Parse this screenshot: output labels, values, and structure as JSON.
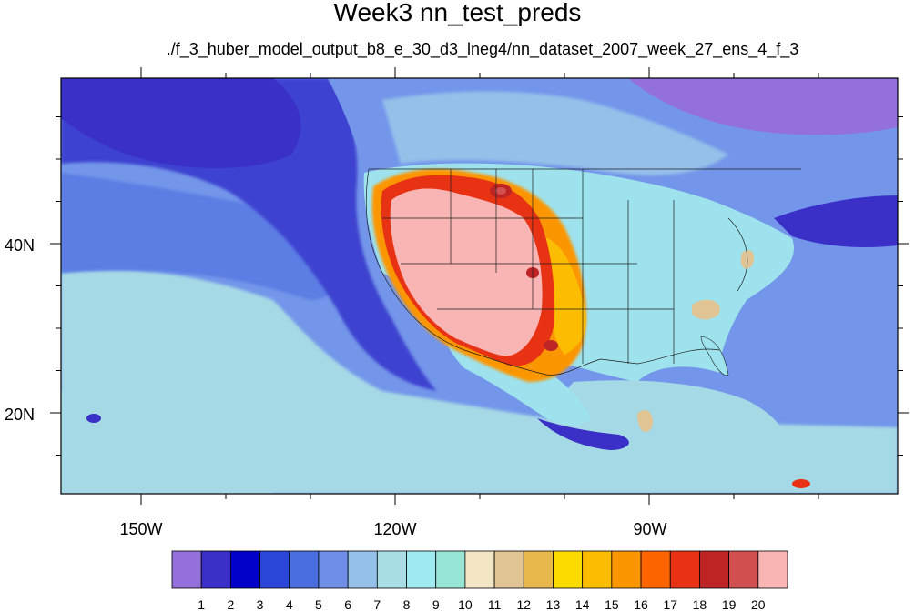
{
  "title": "Week3 nn_test_preds",
  "subtitle": "./f_3_huber_model_output_b8_e_30_d3_lneg4/nn_dataset_2007_week_27_ens_4_f_3",
  "map": {
    "lon_labels": [
      "150W",
      "120W",
      "90W"
    ],
    "lat_labels": [
      "40N",
      "20N"
    ],
    "colors": {
      "ocean_deep": "#3a3ad4",
      "ocean_mid": "#4c6ae0",
      "ocean_light": "#7396ea",
      "ocean_pale": "#a6d9e6",
      "land_pale": "#9de2ec",
      "desert_hot": "#f9b4b4",
      "hot_edge": "#e83020"
    }
  },
  "legend": {
    "labels": [
      "1",
      "2",
      "3",
      "4",
      "5",
      "6",
      "7",
      "8",
      "9",
      "10",
      "11",
      "12",
      "13",
      "14",
      "15",
      "16",
      "17",
      "18",
      "19",
      "20"
    ],
    "colors": [
      "#9370db",
      "#3a30c8",
      "#0000c8",
      "#2a46d8",
      "#4a6ee0",
      "#6e8ee8",
      "#94c0ea",
      "#a8dee6",
      "#9deaf0",
      "#96e6d6",
      "#f2e6c4",
      "#e0c494",
      "#e8b84c",
      "#fcdc00",
      "#fcbc00",
      "#fc9600",
      "#fc6400",
      "#e83214",
      "#be2424",
      "#d25050",
      "#f9b4b4"
    ]
  }
}
